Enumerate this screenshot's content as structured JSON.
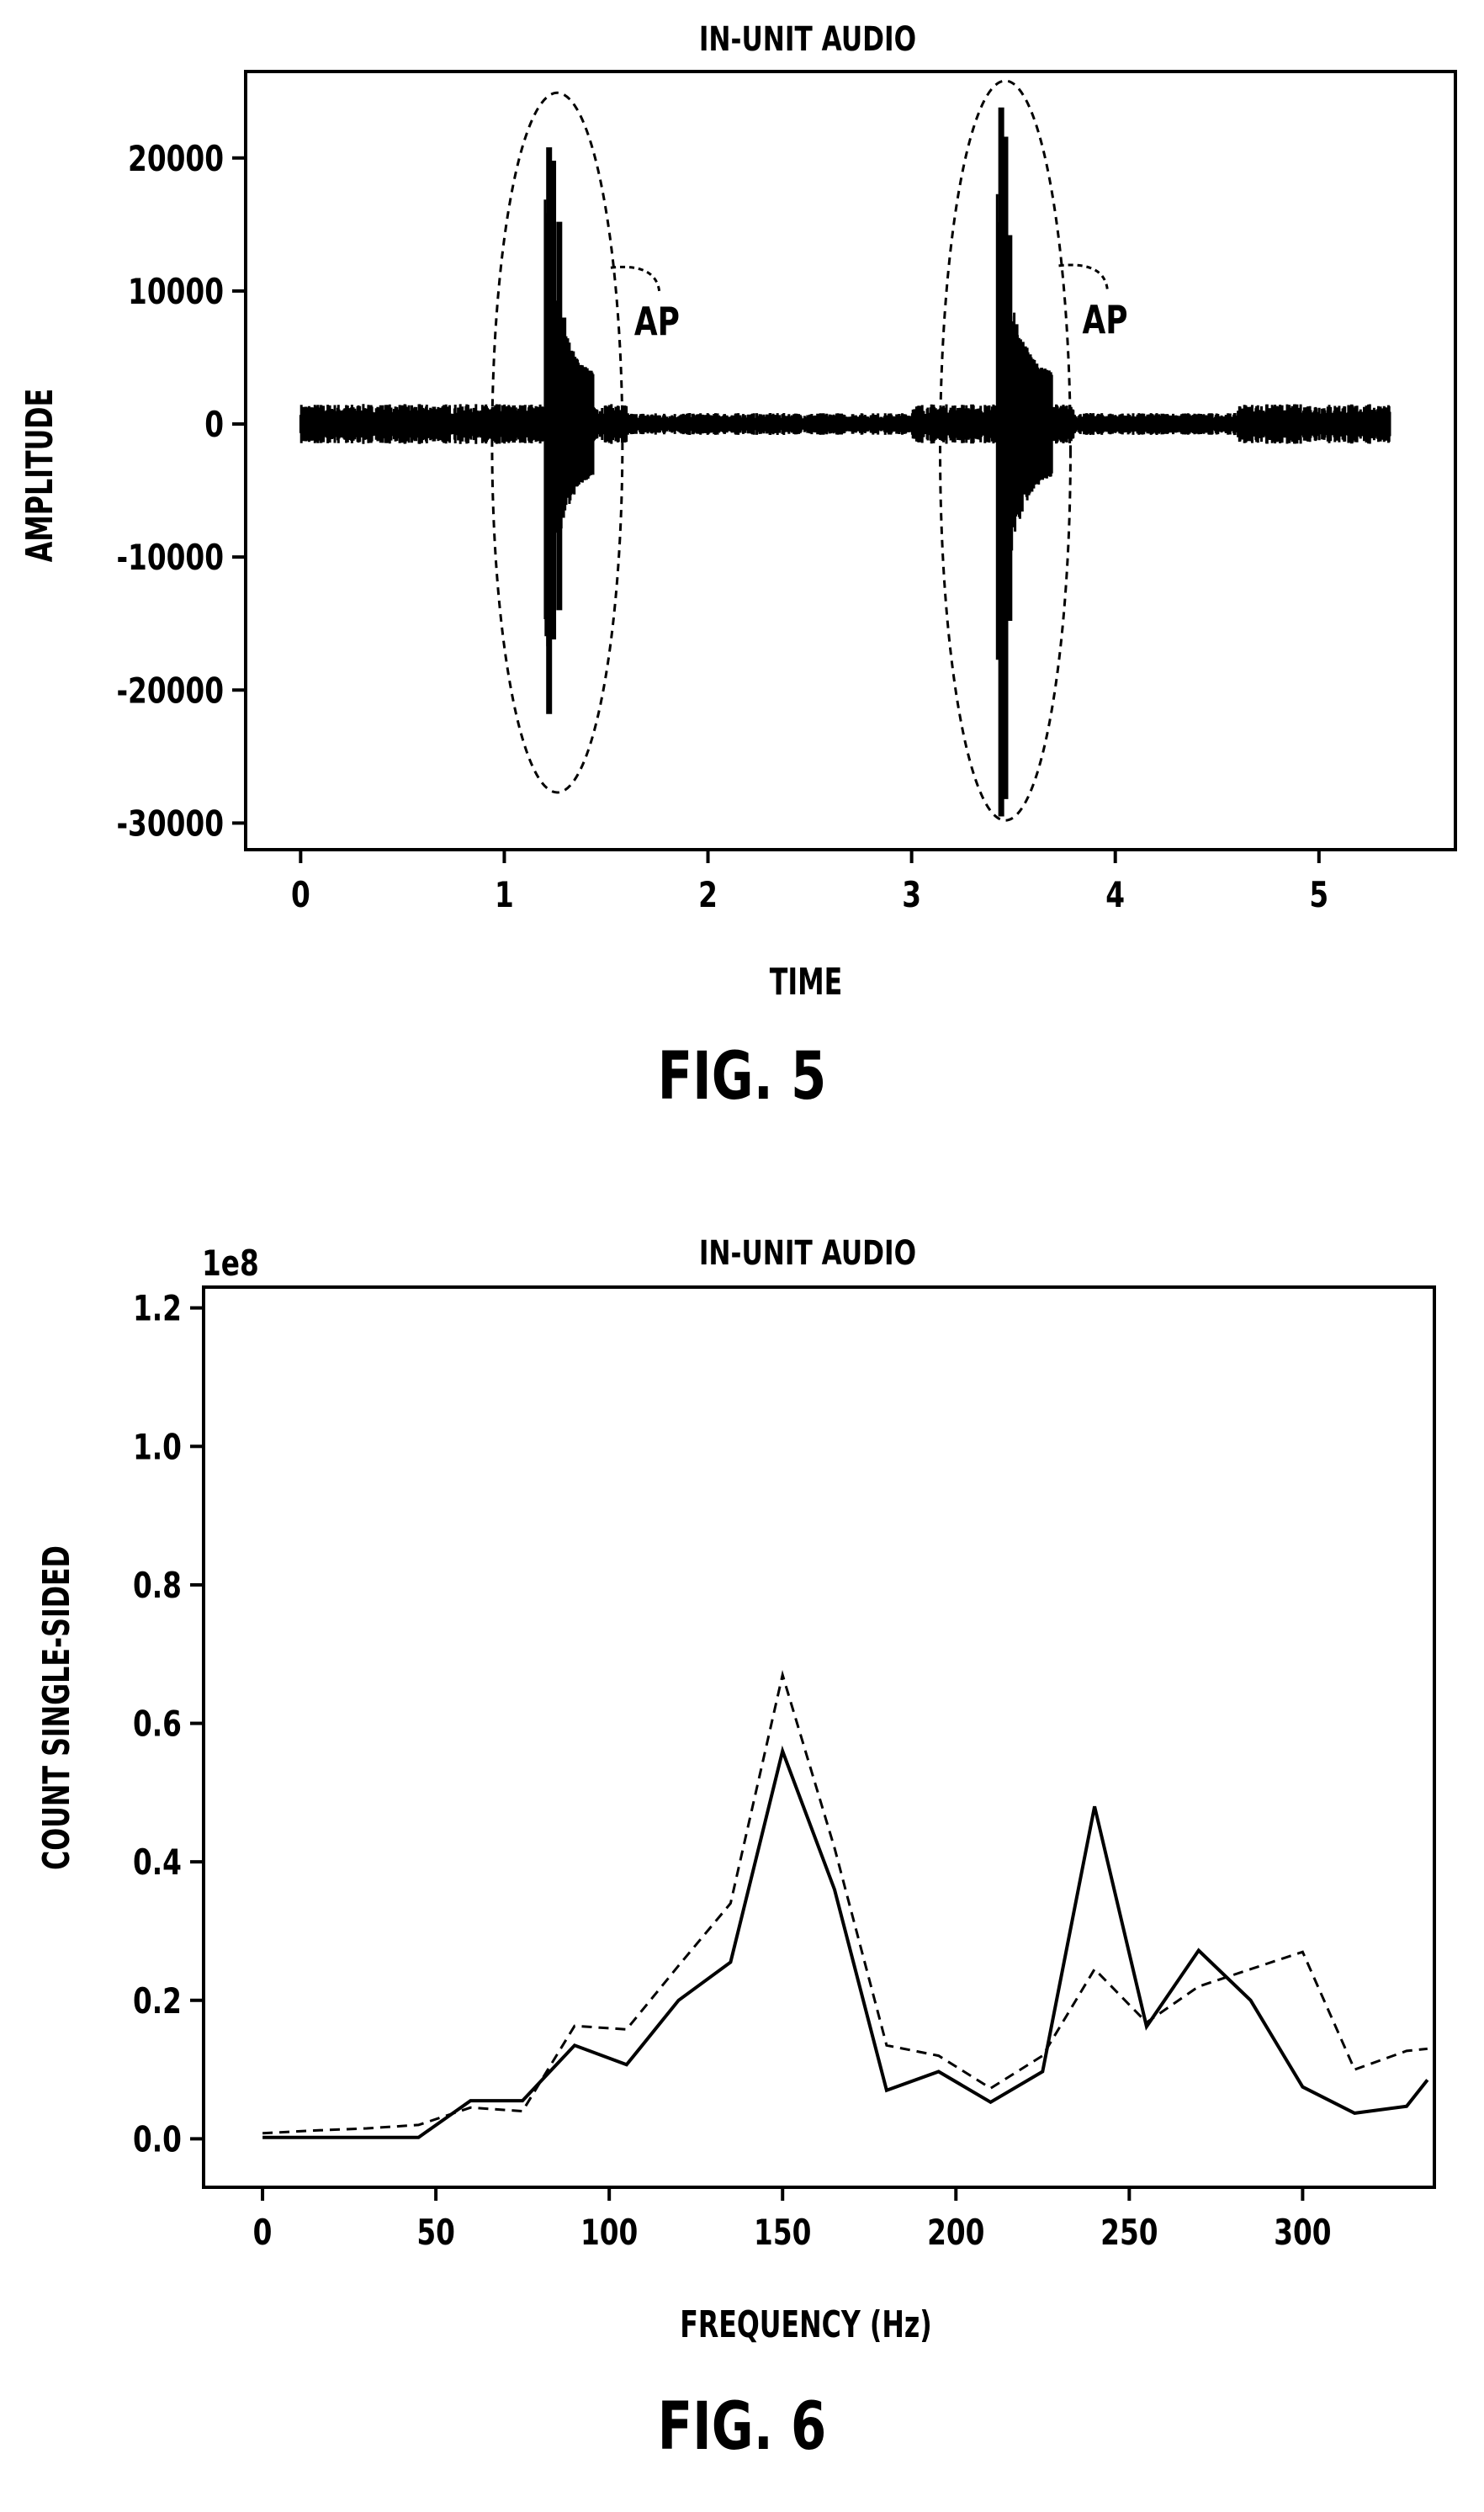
{
  "chart_data": [
    {
      "type": "line",
      "title": "IN-UNIT AUDIO",
      "xlabel": "TIME",
      "ylabel": "AMPLITUDE",
      "xlim": [
        -0.27,
        5.67
      ],
      "ylim": [
        -32000,
        26500
      ],
      "xticks": [
        0,
        1,
        2,
        3,
        4,
        5
      ],
      "yticks": [
        -30000,
        -20000,
        -10000,
        0,
        10000,
        20000
      ],
      "xtick_labels": [
        "0",
        "1",
        "2",
        "3",
        "4",
        "5"
      ],
      "ytick_labels": [
        "-30000",
        "-20000",
        "-10000",
        "0",
        "10000",
        "20000"
      ],
      "grid": false,
      "series": [
        {
          "style": "waveform",
          "color": "#000000",
          "duration": 5.35,
          "noise_amplitude": 1500,
          "bursts": [
            {
              "start": 1.2,
              "length": 0.24,
              "peaks": [
                [
                  1.22,
                  20800,
                  -21800
                ],
                [
                  1.24,
                  19800,
                  -16200
                ],
                [
                  1.27,
                  15200,
                  -14000
                ],
                [
                  1.29,
                  8000,
                  -6500
                ],
                [
                  1.31,
                  5200,
                  -4800
                ],
                [
                  1.34,
                  3000,
                  -2800
                ]
              ]
            },
            {
              "start": 3.42,
              "length": 0.27,
              "peaks": [
                [
                  3.44,
                  23800,
                  -29500
                ],
                [
                  3.46,
                  21600,
                  -28200
                ],
                [
                  3.48,
                  14200,
                  -14800
                ],
                [
                  3.51,
                  7500,
                  -6500
                ],
                [
                  3.53,
                  5500,
                  -4500
                ],
                [
                  3.56,
                  3200,
                  -2800
                ]
              ]
            }
          ]
        }
      ],
      "annotations": [
        {
          "text": "AP",
          "center": [
            1.26,
            -1400
          ],
          "semi_axes": [
            0.32,
            26300
          ]
        },
        {
          "text": "AP",
          "center": [
            3.46,
            -2000
          ],
          "semi_axes": [
            0.32,
            27800
          ]
        }
      ],
      "caption": "FIG. 5"
    },
    {
      "type": "line",
      "title": "IN-UNIT AUDIO",
      "xlabel": "FREQUENCY (Hz)",
      "ylabel": "COUNT SINGLE-SIDED",
      "offset_label": "1e8",
      "xlim": [
        -17,
        338
      ],
      "ylim": [
        -0.07,
        1.23
      ],
      "xticks": [
        0,
        50,
        100,
        150,
        200,
        250,
        300
      ],
      "yticks": [
        0.0,
        0.2,
        0.4,
        0.6,
        0.8,
        1.0,
        1.2
      ],
      "xtick_labels": [
        "0",
        "50",
        "100",
        "150",
        "200",
        "250",
        "300"
      ],
      "ytick_labels": [
        "0.0",
        "0.2",
        "0.4",
        "0.6",
        "0.8",
        "1.0",
        "1.2"
      ],
      "grid": false,
      "series": [
        {
          "style": "solid",
          "color": "#000000",
          "x": [
            0,
            15,
            30,
            45,
            60,
            75,
            90,
            105,
            120,
            135,
            150,
            165,
            180,
            195,
            210,
            225,
            240,
            255,
            270,
            285,
            300,
            315,
            330,
            336
          ],
          "y": [
            0.002,
            0.002,
            0.002,
            0.002,
            0.055,
            0.055,
            0.135,
            0.107,
            0.2,
            0.255,
            0.56,
            0.36,
            0.07,
            0.097,
            0.053,
            0.097,
            0.48,
            0.162,
            0.272,
            0.2,
            0.075,
            0.037,
            0.047,
            0.085
          ]
        },
        {
          "style": "dashed",
          "color": "#000000",
          "x": [
            0,
            15,
            30,
            45,
            60,
            75,
            90,
            105,
            120,
            135,
            150,
            165,
            180,
            195,
            210,
            225,
            240,
            255,
            270,
            285,
            300,
            315,
            330,
            336
          ],
          "y": [
            0.008,
            0.012,
            0.015,
            0.02,
            0.045,
            0.04,
            0.163,
            0.158,
            0.25,
            0.34,
            0.67,
            0.42,
            0.135,
            0.12,
            0.073,
            0.12,
            0.245,
            0.168,
            0.22,
            0.245,
            0.27,
            0.1,
            0.127,
            0.13
          ]
        }
      ],
      "caption": "FIG. 6"
    }
  ]
}
